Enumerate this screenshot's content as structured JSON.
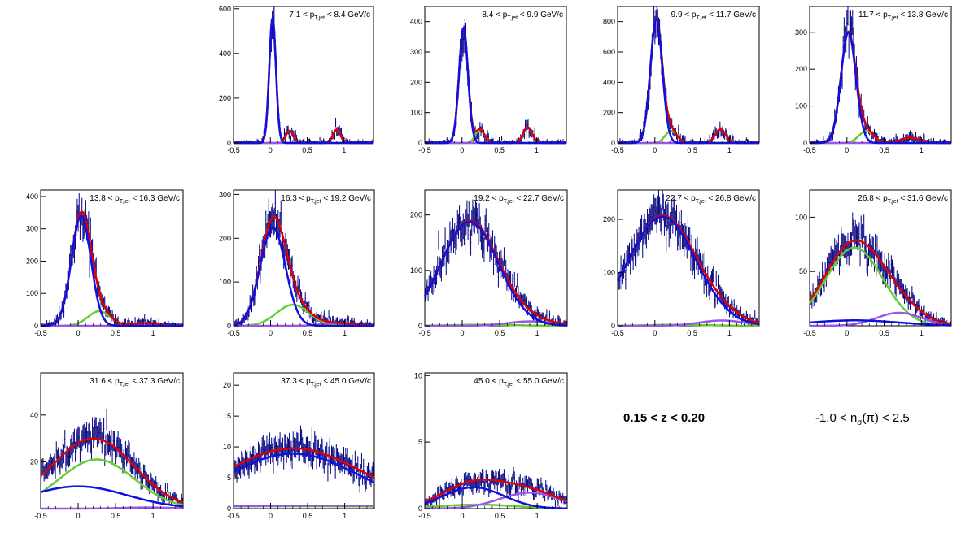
{
  "colors": {
    "data": "#000080",
    "total_fit": "#e00000",
    "pion": "#1010e0",
    "kaon": "#66cc33",
    "proton": "#9955ee"
  },
  "annotations": {
    "z_range": "0.15 < z < 0.20",
    "nsigma_pre": "-1.0 < n",
    "nsigma_sub": "σ",
    "nsigma_post": "(π) < 2.5"
  },
  "chart_data": [
    {
      "type": "scatter",
      "bin": "7.1 < p_{T,jet} < 8.4 GeV/c",
      "xlim": [
        -0.5,
        1.4
      ],
      "ylim": [
        0,
        610
      ],
      "x_ticks": [
        -0.5,
        0,
        0.5,
        1
      ],
      "y_ticks": [
        0,
        200,
        400,
        600
      ],
      "components": {
        "pion": {
          "amp": 560,
          "mean": 0.03,
          "sigma": 0.045
        },
        "kaon": {
          "amp": 55,
          "mean": 0.26,
          "sigma": 0.05
        },
        "proton": {
          "amp": 60,
          "mean": 0.9,
          "sigma": 0.05
        }
      }
    },
    {
      "type": "scatter",
      "bin": "8.4 < p_{T,jet} < 9.9 GeV/c",
      "xlim": [
        -0.5,
        1.4
      ],
      "ylim": [
        0,
        450
      ],
      "x_ticks": [
        -0.5,
        0,
        0.5,
        1
      ],
      "y_ticks": [
        0,
        100,
        200,
        300,
        400
      ],
      "components": {
        "pion": {
          "amp": 380,
          "mean": 0.02,
          "sigma": 0.06
        },
        "kaon": {
          "amp": 45,
          "mean": 0.24,
          "sigma": 0.06
        },
        "proton": {
          "amp": 52,
          "mean": 0.88,
          "sigma": 0.06
        }
      }
    },
    {
      "type": "scatter",
      "bin": "9.9 < p_{T,jet} < 11.7 GeV/c",
      "xlim": [
        -0.5,
        1.4
      ],
      "ylim": [
        0,
        900
      ],
      "x_ticks": [
        -0.5,
        0,
        0.5,
        1
      ],
      "y_ticks": [
        0,
        200,
        400,
        600,
        800
      ],
      "components": {
        "pion": {
          "amp": 820,
          "mean": 0.02,
          "sigma": 0.08
        },
        "kaon": {
          "amp": 80,
          "mean": 0.22,
          "sigma": 0.08
        },
        "proton": {
          "amp": 90,
          "mean": 0.88,
          "sigma": 0.07
        }
      }
    },
    {
      "type": "scatter",
      "bin": "11.7 < p_{T,jet} < 13.8 GeV/c",
      "xlim": [
        -0.5,
        1.4
      ],
      "ylim": [
        0,
        370
      ],
      "x_ticks": [
        -0.5,
        0,
        0.5,
        1
      ],
      "y_ticks": [
        0,
        100,
        200,
        300
      ],
      "components": {
        "pion": {
          "amp": 300,
          "mean": 0.02,
          "sigma": 0.1
        },
        "kaon": {
          "amp": 32,
          "mean": 0.26,
          "sigma": 0.1
        },
        "proton": {
          "amp": 15,
          "mean": 0.85,
          "sigma": 0.12
        }
      }
    },
    {
      "type": "scatter",
      "bin": "13.8 < p_{T,jet} < 16.3 GeV/c",
      "xlim": [
        -0.5,
        1.4
      ],
      "ylim": [
        0,
        420
      ],
      "x_ticks": [
        -0.5,
        0,
        0.5,
        1
      ],
      "y_ticks": [
        0,
        100,
        200,
        300,
        400
      ],
      "components": {
        "pion": {
          "amp": 340,
          "mean": 0.04,
          "sigma": 0.13
        },
        "kaon": {
          "amp": 45,
          "mean": 0.28,
          "sigma": 0.15
        },
        "proton": {
          "amp": 8,
          "mean": 0.9,
          "sigma": 0.15
        }
      }
    },
    {
      "type": "scatter",
      "bin": "16.3 < p_{T,jet} < 19.2 GeV/c",
      "xlim": [
        -0.5,
        1.4
      ],
      "ylim": [
        0,
        310
      ],
      "x_ticks": [
        -0.5,
        0,
        0.5,
        1
      ],
      "y_ticks": [
        0,
        100,
        200,
        300
      ],
      "components": {
        "pion": {
          "amp": 225,
          "mean": 0.03,
          "sigma": 0.17
        },
        "kaon": {
          "amp": 48,
          "mean": 0.3,
          "sigma": 0.22
        },
        "proton": {
          "amp": 6,
          "mean": 0.9,
          "sigma": 0.2
        }
      }
    },
    {
      "type": "scatter",
      "bin": "19.2 < p_{T,jet} < 22.7 GeV/c",
      "xlim": [
        -0.5,
        1.4
      ],
      "ylim": [
        0,
        245
      ],
      "x_ticks": [
        -0.5,
        0,
        0.5,
        1
      ],
      "y_ticks": [
        0,
        100,
        200
      ],
      "components": {
        "pion": {
          "amp": 188,
          "mean": 0.1,
          "sigma": 0.38
        },
        "kaon": {
          "amp": 2,
          "mean": 0.3,
          "sigma": 0.4
        },
        "proton": {
          "amp": 8,
          "mean": 0.9,
          "sigma": 0.3
        }
      }
    },
    {
      "type": "scatter",
      "bin": "22.7 < p_{T,jet} < 26.8 GeV/c",
      "xlim": [
        -0.5,
        1.4
      ],
      "ylim": [
        0,
        255
      ],
      "x_ticks": [
        -0.5,
        0,
        0.5,
        1
      ],
      "y_ticks": [
        0,
        100,
        200
      ],
      "components": {
        "pion": {
          "amp": 205,
          "mean": 0.1,
          "sigma": 0.45
        },
        "kaon": {
          "amp": 2,
          "mean": 0.3,
          "sigma": 0.4
        },
        "proton": {
          "amp": 10,
          "mean": 0.9,
          "sigma": 0.3
        }
      }
    },
    {
      "type": "scatter",
      "bin": "26.8 < p_{T,jet} < 31.6 GeV/c",
      "xlim": [
        -0.5,
        1.4
      ],
      "ylim": [
        0,
        125
      ],
      "x_ticks": [
        -0.5,
        0,
        0.5,
        1
      ],
      "y_ticks": [
        50,
        100
      ],
      "components": {
        "pion": {
          "amp": 5,
          "mean": 0.1,
          "sigma": 0.6
        },
        "kaon": {
          "amp": 72,
          "mean": 0.1,
          "sigma": 0.38
        },
        "proton": {
          "amp": 12,
          "mean": 0.7,
          "sigma": 0.3
        }
      }
    },
    {
      "type": "scatter",
      "bin": "31.6 < p_{T,jet} < 37.3 GeV/c",
      "xlim": [
        -0.5,
        1.4
      ],
      "ylim": [
        0,
        58
      ],
      "x_ticks": [
        -0.5,
        0,
        0.5,
        1
      ],
      "y_ticks": [
        20,
        40
      ],
      "components": {
        "pion": {
          "amp": 9.5,
          "mean": 0.0,
          "sigma": 0.65
        },
        "kaon": {
          "amp": 21,
          "mean": 0.25,
          "sigma": 0.5
        },
        "proton": {
          "amp": 0.5,
          "mean": 0.9,
          "sigma": 0.3
        }
      }
    },
    {
      "type": "scatter",
      "bin": "37.3 < p_{T,jet} < 45.0 GeV/c",
      "xlim": [
        -0.5,
        1.4
      ],
      "ylim": [
        0,
        22
      ],
      "x_ticks": [
        -0.5,
        0,
        0.5,
        1
      ],
      "y_ticks": [
        0,
        5,
        10,
        15,
        20
      ],
      "components": {
        "pion": {
          "amp": 8.9,
          "mean": 0.3,
          "sigma": 0.9
        },
        "kaon": {
          "amp": 0.4,
          "mean": 0.3,
          "sigma": 2
        },
        "proton": {
          "amp": 0.5,
          "mean": 0.9,
          "sigma": 2
        }
      }
    },
    {
      "type": "scatter",
      "bin": "45.0 < p_{T,jet} < 55.0 GeV/c",
      "xlim": [
        -0.5,
        1.4
      ],
      "ylim": [
        0,
        10.2
      ],
      "x_ticks": [
        -0.5,
        0,
        0.5,
        1
      ],
      "y_ticks": [
        0,
        5,
        10
      ],
      "components": {
        "pion": {
          "amp": 1.6,
          "mean": 0.15,
          "sigma": 0.4
        },
        "kaon": {
          "amp": 0.3,
          "mean": 0.2,
          "sigma": 0.5
        },
        "proton": {
          "amp": 1.2,
          "mean": 0.9,
          "sigma": 0.4
        }
      }
    }
  ]
}
